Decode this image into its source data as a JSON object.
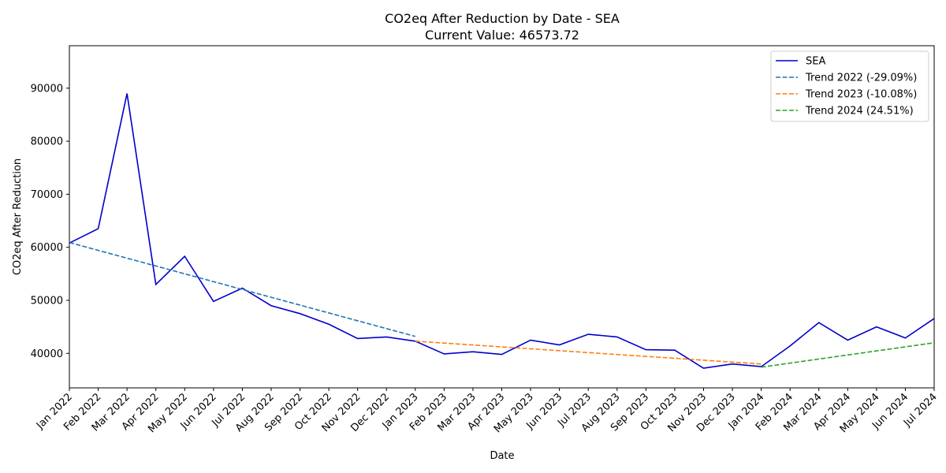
{
  "chart_data": {
    "type": "line",
    "title_line1": "CO2eq After Reduction by Date - SEA",
    "title_line2": "Current Value: 46573.72",
    "xlabel": "Date",
    "ylabel": "CO2eq After Reduction",
    "ylim": [
      33500,
      98000
    ],
    "yticks": [
      40000,
      50000,
      60000,
      70000,
      80000,
      90000
    ],
    "grid": false,
    "legend_position": "top-right",
    "categories": [
      "Jan 2022",
      "Feb 2022",
      "Mar 2022",
      "Apr 2022",
      "May 2022",
      "Jun 2022",
      "Jul 2022",
      "Aug 2022",
      "Sep 2022",
      "Oct 2022",
      "Nov 2022",
      "Dec 2022",
      "Jan 2023",
      "Feb 2023",
      "Mar 2023",
      "Apr 2023",
      "May 2023",
      "Jun 2023",
      "Jul 2023",
      "Aug 2023",
      "Sep 2023",
      "Oct 2023",
      "Nov 2023",
      "Dec 2023",
      "Jan 2024",
      "Feb 2024",
      "Mar 2024",
      "Apr 2024",
      "May 2024",
      "Jun 2024",
      "Jul 2024"
    ],
    "series": [
      {
        "name": "SEA",
        "style": "solid",
        "color": "#0000cc",
        "x": [
          "Jan 2022",
          "Feb 2022",
          "Mar 2022",
          "Apr 2022",
          "May 2022",
          "Jun 2022",
          "Jul 2022",
          "Aug 2022",
          "Sep 2022",
          "Oct 2022",
          "Nov 2022",
          "Dec 2022",
          "Jan 2023",
          "Feb 2023",
          "Mar 2023",
          "Apr 2023",
          "May 2023",
          "Jun 2023",
          "Jul 2023",
          "Aug 2023",
          "Sep 2023",
          "Oct 2023",
          "Nov 2023",
          "Dec 2023",
          "Jan 2024",
          "Feb 2024",
          "Mar 2024",
          "Apr 2024",
          "May 2024",
          "Jun 2024",
          "Jul 2024"
        ],
        "values": [
          60800,
          63500,
          89000,
          53000,
          58300,
          49800,
          52300,
          49000,
          47500,
          45500,
          42800,
          43100,
          42300,
          39900,
          40300,
          39800,
          42500,
          41600,
          43600,
          43100,
          40700,
          40600,
          37200,
          38000,
          37500,
          41400,
          45800,
          42500,
          45000,
          42900,
          46573.72
        ]
      },
      {
        "name": "Trend 2022 (-29.09%)",
        "style": "dashed",
        "color": "#1f77b4",
        "x": [
          "Jan 2022",
          "Jan 2023"
        ],
        "values": [
          60900,
          43200
        ]
      },
      {
        "name": "Trend 2023 (-10.08%)",
        "style": "dashed",
        "color": "#ff7f0e",
        "x": [
          "Jan 2023",
          "Jan 2024"
        ],
        "values": [
          42300,
          38000
        ]
      },
      {
        "name": "Trend 2024 (24.51%)",
        "style": "dashed",
        "color": "#2ca02c",
        "x": [
          "Jan 2024",
          "Jul 2024"
        ],
        "values": [
          37400,
          42000
        ]
      }
    ]
  }
}
